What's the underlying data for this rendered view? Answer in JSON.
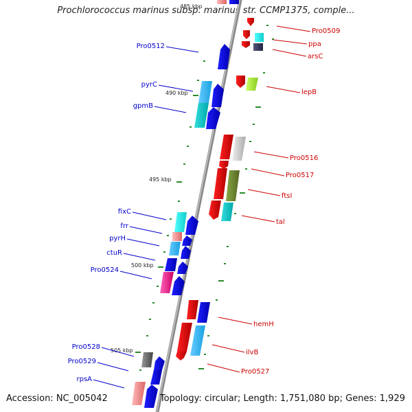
{
  "title": "Prochlorococcus marinus subsp. marinus str. CCMP1375, comple...",
  "accession": "Accession: NC_005042",
  "topology": "Topology: circular; Length: 1,751,080 bp; Genes: 1,929",
  "colors": {
    "forward": "#0000cc",
    "reverse": "#cc0000"
  },
  "kbp_markers": [
    "485 kbp",
    "490 kbp",
    "495 kbp",
    "500 kbp",
    "505 kbp"
  ],
  "genes_left": [
    "Pro0512",
    "pyrC",
    "gpmB",
    "fixC",
    "frr",
    "pyrH",
    "ctuR",
    "Pro0524",
    "Pro0528",
    "Pro0529",
    "rpsA"
  ],
  "genes_right": [
    "Pro0509",
    "ppa",
    "arsC",
    "lepB",
    "Pro0516",
    "Pro0517",
    "ftsI",
    "tal",
    "hemH",
    "ilvB",
    "Pro0527"
  ]
}
